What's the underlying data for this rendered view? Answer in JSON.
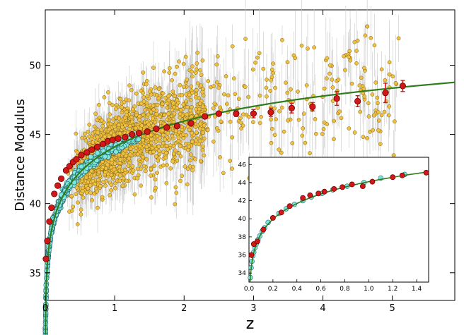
{
  "chart_data": [
    {
      "type": "scatter",
      "panel": "main",
      "title": "",
      "xlabel": "z",
      "ylabel": "Distance Modulus",
      "xlim": [
        0,
        5.9
      ],
      "ylim": [
        33,
        54
      ],
      "x_ticks": [
        0,
        1,
        2,
        3,
        4,
        5
      ],
      "y_ticks": [
        35,
        40,
        45,
        50
      ],
      "grid": false,
      "legend": "none",
      "colors": {
        "qso": "#f0c040",
        "qso_edge": "#7a6010",
        "qso_err": "#c8c8c8",
        "sn": "#7fe6e0",
        "sn_edge": "#1f5f66",
        "binned": "#d01818",
        "binned_edge": "#6a0000",
        "model": "#2e7d1c"
      },
      "model_curve": {
        "description": "Flat LCDM distance modulus, H0=70, Om=0.3",
        "x_range": [
          0.003,
          5.9
        ]
      },
      "binned_points": {
        "x": [
          0.01,
          0.03,
          0.06,
          0.09,
          0.13,
          0.18,
          0.23,
          0.3,
          0.35,
          0.4,
          0.45,
          0.52,
          0.6,
          0.67,
          0.75,
          0.83,
          0.9,
          0.97,
          1.05,
          1.15,
          1.25,
          1.35,
          1.47,
          1.6,
          1.75,
          1.9,
          2.1,
          2.3,
          2.5,
          2.75,
          3.0,
          3.25,
          3.55,
          3.85,
          4.2,
          4.5,
          4.9,
          5.15
        ],
        "y": [
          36.0,
          37.3,
          38.7,
          39.7,
          40.7,
          41.3,
          41.8,
          42.4,
          42.7,
          43.0,
          43.2,
          43.5,
          43.7,
          43.9,
          44.1,
          44.3,
          44.5,
          44.6,
          44.7,
          44.8,
          45.0,
          45.1,
          45.2,
          45.4,
          45.5,
          45.6,
          45.8,
          46.3,
          46.5,
          46.5,
          46.5,
          46.6,
          46.9,
          47.0,
          47.6,
          47.4,
          48.0,
          48.5
        ],
        "yerr": [
          0.1,
          0.1,
          0.1,
          0.1,
          0.1,
          0.1,
          0.1,
          0.1,
          0.1,
          0.1,
          0.1,
          0.1,
          0.1,
          0.1,
          0.1,
          0.1,
          0.1,
          0.1,
          0.1,
          0.1,
          0.1,
          0.1,
          0.1,
          0.1,
          0.1,
          0.1,
          0.1,
          0.15,
          0.15,
          0.2,
          0.3,
          0.3,
          0.35,
          0.3,
          0.5,
          0.4,
          0.7,
          0.4
        ]
      },
      "supernovae": {
        "z_range": [
          0.003,
          1.4
        ],
        "count_approx": 580
      },
      "quasars": {
        "z_range": [
          0.04,
          5.2
        ],
        "count_approx": 1600
      }
    },
    {
      "type": "scatter",
      "panel": "inset",
      "title": "",
      "xlabel": "",
      "ylabel": "",
      "xlim": [
        0.0,
        1.5
      ],
      "ylim": [
        33,
        46.8
      ],
      "x_ticks": [
        0.0,
        0.2,
        0.4,
        0.6,
        0.8,
        1.0,
        1.2,
        1.4
      ],
      "y_ticks": [
        34,
        36,
        38,
        40,
        42,
        44,
        46
      ],
      "grid": false,
      "legend": "none",
      "binned_points": {
        "x": [
          0.02,
          0.04,
          0.07,
          0.12,
          0.2,
          0.27,
          0.34,
          0.45,
          0.51,
          0.58,
          0.63,
          0.71,
          0.78,
          0.86,
          0.95,
          1.03,
          1.2,
          1.28,
          1.48
        ],
        "y": [
          36.0,
          37.2,
          37.5,
          38.8,
          40.1,
          40.7,
          41.4,
          42.3,
          42.6,
          42.8,
          43.0,
          43.3,
          43.5,
          43.8,
          43.6,
          44.1,
          44.6,
          44.8,
          45.1
        ],
        "yerr": [
          0.3,
          0.3,
          0.3,
          0.3,
          0.2,
          0.2,
          0.2,
          0.2,
          0.2,
          0.2,
          0.2,
          0.2,
          0.2,
          0.2,
          0.25,
          0.2,
          0.2,
          0.2,
          0.2
        ]
      },
      "supernovae_points": {
        "x": [
          0.012,
          0.018,
          0.025,
          0.032,
          0.04,
          0.05,
          0.06,
          0.075,
          0.09,
          0.11,
          0.13,
          0.16,
          0.2,
          0.25,
          0.31,
          0.38,
          0.45,
          0.52,
          0.61,
          0.7,
          0.82,
          0.96,
          1.1,
          1.3
        ],
        "y": [
          33.5,
          34.6,
          35.3,
          35.9,
          36.3,
          36.8,
          37.2,
          37.7,
          38.1,
          38.6,
          39.0,
          39.6,
          40.1,
          40.6,
          41.1,
          41.6,
          42.0,
          42.4,
          42.8,
          43.2,
          43.6,
          44.0,
          44.5,
          44.9
        ]
      }
    }
  ]
}
